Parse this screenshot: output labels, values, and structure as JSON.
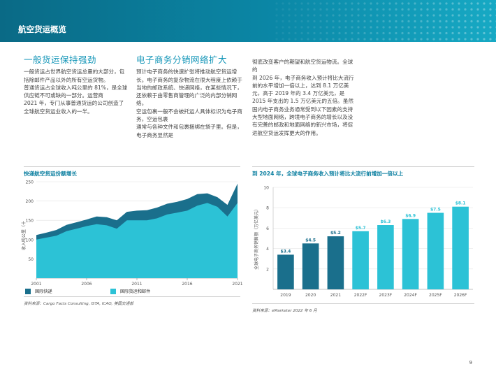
{
  "header": {
    "title": "航空货运概览"
  },
  "section1": {
    "heading": "一般货运保持强劲",
    "paragraphs": [
      "一般货运占世界航空货运总量的大部分，包括除邮件产品以外的所有空运货物。",
      "普通货运占全球收入吨公里的 81%，是全球供应链不可或缺的一部分。运营商",
      "2021 年，专门从事普通货运的公司创造了全球航空货运业收入的一半。"
    ]
  },
  "section2": {
    "heading": "电子商务分销网络扩大",
    "paragraphs": [
      "预计电子商务的快速扩张将推动航空货运增长。电子商务的复杂物流在很大程度上依赖于当地的邮政系统、快递网络，在某些情况下，还依赖于由零售商管理的广泛的内部分销网络。",
      "空运包裹一般不会被托运人具体标识为电子商务，空运包裹",
      "通常与各种文件和包裹捆绑在袋子里。但是，电子商务显然是"
    ]
  },
  "section3": {
    "paragraphs": [
      "彻底改变客户的期望和航空货运物流。全球的",
      "到 2026 年，电子商务收入预计将比大流行前的水平增加一倍以上，达到 8.1 万亿美元，高于 2019 年的 3.4 万亿美元，是 2015 年支出的 1.5 万亿美元的五倍。虽然国内电子商务业务通常受到以下因素的支持大型地面网络，跨境电子商务的增长以及没有完善的邮政和地面网络的新兴市场，将促进航空货运发挥更大的作用。"
    ]
  },
  "chart_data": [
    {
      "type": "area",
      "title": "快递航空货运份额增长",
      "ylabel": "收入吨公里（十",
      "xlabel": "",
      "ylim": [
        0,
        250
      ],
      "yticks": [
        50,
        100,
        150,
        200,
        250
      ],
      "xticks": [
        "2001",
        "2006",
        "2011",
        "2016",
        "2021"
      ],
      "x": [
        2001,
        2002,
        2003,
        2004,
        2005,
        2006,
        2007,
        2008,
        2009,
        2010,
        2011,
        2012,
        2013,
        2014,
        2015,
        2016,
        2017,
        2018,
        2019,
        2020,
        2021
      ],
      "series": [
        {
          "name": "国际快递",
          "color": "#1a6f8c",
          "values": [
            112,
            118,
            125,
            138,
            145,
            152,
            160,
            158,
            150,
            172,
            175,
            176,
            183,
            193,
            198,
            205,
            218,
            220,
            210,
            190,
            245
          ]
        },
        {
          "name": "国际货运和邮件",
          "color": "#2cc2d6",
          "values": [
            100,
            105,
            110,
            122,
            128,
            135,
            140,
            137,
            128,
            150,
            150,
            150,
            155,
            165,
            170,
            175,
            188,
            195,
            185,
            160,
            195
          ]
        }
      ],
      "source": "资料来源：Cargo Facts Consulting, ISTA, ICAO, 美国交通部"
    },
    {
      "type": "bar",
      "title": "到 2024 年，全球电子商务收入预计将比大流行前增加一倍以上",
      "ylabel": "全球电子商务销售额（万亿美元）",
      "xlabel": "",
      "ylim": [
        0,
        10
      ],
      "yticks": [
        2,
        4,
        6,
        8,
        10
      ],
      "categories": [
        "2019",
        "2020",
        "2021",
        "2022F",
        "2023F",
        "2024F",
        "2025F",
        "2026F"
      ],
      "values": [
        3.4,
        4.5,
        5.2,
        5.7,
        6.3,
        6.9,
        7.5,
        8.1
      ],
      "labels": [
        "$3.4",
        "$4.5",
        "$5.2",
        "$5.7",
        "$6.3",
        "$6.9",
        "$7.5",
        "$8.1"
      ],
      "colors": [
        "#1a6f8c",
        "#1a6f8c",
        "#1a6f8c",
        "#2cc2d6",
        "#2cc2d6",
        "#2cc2d6",
        "#2cc2d6",
        "#2cc2d6"
      ],
      "source": "资料来源：eMarketer 2022 年 6 月"
    }
  ],
  "page_number": "9"
}
